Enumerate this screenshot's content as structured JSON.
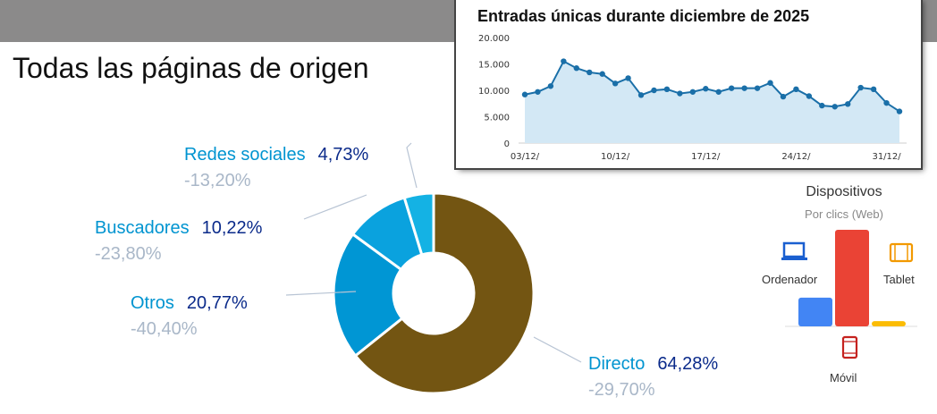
{
  "title": "Todas las páginas de origen",
  "chart_data": [
    {
      "type": "pie",
      "title": "Todas las páginas de origen",
      "slices": [
        {
          "name": "Directo",
          "value": 64.28,
          "label": "64,28%",
          "change": "-29,70%",
          "color": "#735512"
        },
        {
          "name": "Otros",
          "value": 20.77,
          "label": "20,77%",
          "change": "-40,40%",
          "color": "#0096d4"
        },
        {
          "name": "Buscadores",
          "value": 10.22,
          "label": "10,22%",
          "change": "-23,80%",
          "color": "#0aa2de"
        },
        {
          "name": "Redes sociales",
          "value": 4.73,
          "label": "4,73%",
          "change": "-13,20%",
          "color": "#14b2e4"
        }
      ]
    },
    {
      "type": "area",
      "title": "Entradas únicas durante diciembre de 2025",
      "ylim": [
        0,
        20000
      ],
      "yticks": [
        "20.000",
        "15.000",
        "10.000",
        "5.000",
        "0"
      ],
      "ytick_values": [
        20000,
        15000,
        10000,
        5000,
        0
      ],
      "xticks": [
        "03/12/",
        "10/12/",
        "17/12/",
        "24/12/",
        "31/12/"
      ],
      "values": [
        9200,
        9700,
        10800,
        15500,
        14200,
        13400,
        13100,
        11300,
        12300,
        9100,
        10000,
        10200,
        9400,
        9700,
        10300,
        9700,
        10400,
        10400,
        10400,
        11400,
        8800,
        10200,
        8900,
        7100,
        6900,
        7400,
        10500,
        10200,
        7600,
        6000
      ]
    },
    {
      "type": "bar",
      "title": "Dispositivos",
      "subtitle": "Por clics (Web)",
      "categories": [
        "Ordenador",
        "Móvil",
        "Tablet"
      ],
      "values": [
        22,
        74,
        4
      ],
      "colors": [
        "#4285f4",
        "#ea4335",
        "#fbbc04"
      ]
    }
  ]
}
